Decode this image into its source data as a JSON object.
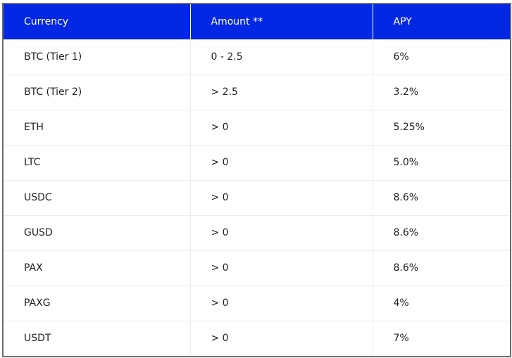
{
  "table": {
    "headers": [
      "Currency",
      "Amount **",
      "APY"
    ],
    "rows": [
      [
        "BTC (Tier 1)",
        "0 - 2.5",
        "6%"
      ],
      [
        "BTC (Tier 2)",
        "> 2.5",
        "3.2%"
      ],
      [
        "ETH",
        "> 0",
        "5.25%"
      ],
      [
        "LTC",
        "> 0",
        "5.0%"
      ],
      [
        "USDC",
        "> 0",
        "8.6%"
      ],
      [
        "GUSD",
        "> 0",
        "8.6%"
      ],
      [
        "PAX",
        "> 0",
        "8.6%"
      ],
      [
        "PAXG",
        "> 0",
        "4%"
      ],
      [
        "USDT",
        "> 0",
        "7%"
      ]
    ]
  },
  "colors": {
    "header_background": "#0228e4",
    "header_text": "#ffffff",
    "body_text": "#222222",
    "frame_border": "#6e6e6e",
    "row_divider": "#ececec"
  }
}
